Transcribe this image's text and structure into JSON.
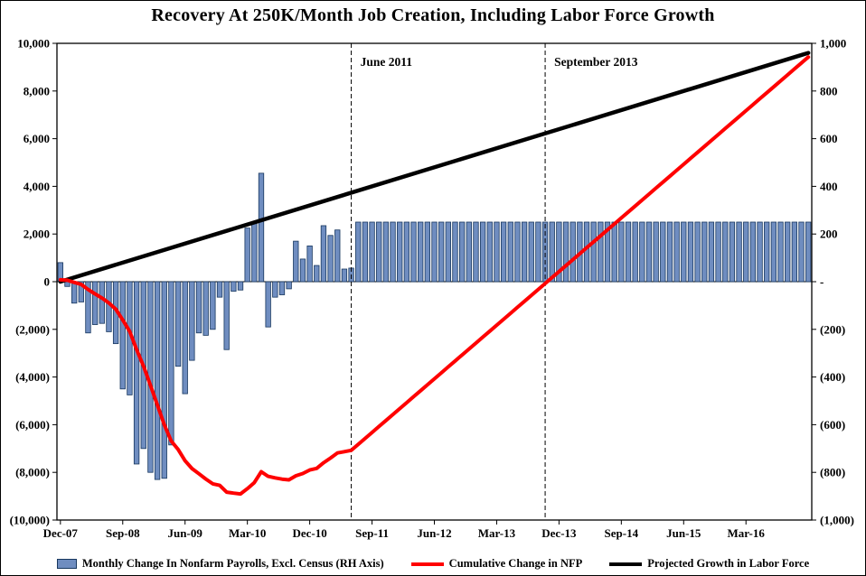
{
  "chart_data": {
    "type": "combo",
    "title": "Recovery At 250K/Month Job Creation, Including Labor Force Growth",
    "grid": "none",
    "legend_position": "bottom",
    "colors": {
      "bar_fill": "#6F8DC0",
      "bar_border": "#17375E",
      "nfp_line": "#FF0000",
      "labor_line": "#000000",
      "annotation_line": "#000000"
    },
    "x_axis": {
      "start_label": "Dec-07",
      "months_count": 109,
      "ticks": [
        {
          "label": "Dec-07",
          "month": 0
        },
        {
          "label": "Sep-08",
          "month": 9
        },
        {
          "label": "Jun-09",
          "month": 18
        },
        {
          "label": "Mar-10",
          "month": 27
        },
        {
          "label": "Dec-10",
          "month": 36
        },
        {
          "label": "Sep-11",
          "month": 45
        },
        {
          "label": "Jun-12",
          "month": 54
        },
        {
          "label": "Mar-13",
          "month": 63
        },
        {
          "label": "Dec-13",
          "month": 72
        },
        {
          "label": "Sep-14",
          "month": 81
        },
        {
          "label": "Jun-15",
          "month": 90
        },
        {
          "label": "Mar-16",
          "month": 99
        }
      ]
    },
    "y_axis_left": {
      "min": -10000,
      "max": 10000,
      "ticks": [
        {
          "label": "10,000",
          "value": 10000
        },
        {
          "label": "8,000",
          "value": 8000
        },
        {
          "label": "6,000",
          "value": 6000
        },
        {
          "label": "4,000",
          "value": 4000
        },
        {
          "label": "2,000",
          "value": 2000
        },
        {
          "label": "0",
          "value": 0
        },
        {
          "label": "(2,000)",
          "value": -2000
        },
        {
          "label": "(4,000)",
          "value": -4000
        },
        {
          "label": "(6,000)",
          "value": -6000
        },
        {
          "label": "(8,000)",
          "value": -8000
        },
        {
          "label": "(10,000)",
          "value": -10000
        }
      ]
    },
    "y_axis_right": {
      "min": -1000,
      "max": 1000,
      "ticks": [
        {
          "label": "1,000",
          "value": 1000
        },
        {
          "label": "800",
          "value": 800
        },
        {
          "label": "600",
          "value": 600
        },
        {
          "label": "400",
          "value": 400
        },
        {
          "label": "200",
          "value": 200
        },
        {
          "label": "-",
          "value": 0
        },
        {
          "label": "(200)",
          "value": -200
        },
        {
          "label": "(400)",
          "value": -400
        },
        {
          "label": "(600)",
          "value": -600
        },
        {
          "label": "(800)",
          "value": -800
        },
        {
          "label": "(1,000)",
          "value": -1000
        }
      ]
    },
    "annotations": [
      {
        "label": "June 2011",
        "month": 42
      },
      {
        "label": "September 2013",
        "month": 70
      }
    ],
    "series": [
      {
        "name": "Monthly Change In Nonfarm Payrolls, Excl. Census (RH Axis)",
        "type": "bar",
        "axis": "right",
        "values": [
          80,
          -20,
          -90,
          -85,
          -215,
          -180,
          -175,
          -210,
          -260,
          -450,
          -475,
          -765,
          -700,
          -800,
          -830,
          -825,
          -685,
          -355,
          -470,
          -330,
          -215,
          -225,
          -200,
          -65,
          -285,
          -40,
          -35,
          225,
          250,
          455,
          -190,
          -65,
          -55,
          -30,
          170,
          95,
          150,
          68,
          235,
          194,
          217,
          53,
          57,
          250,
          250,
          250,
          250,
          250,
          250,
          250,
          250,
          250,
          250,
          250,
          250,
          250,
          250,
          250,
          250,
          250,
          250,
          250,
          250,
          250,
          250,
          250,
          250,
          250,
          250,
          250,
          250,
          250,
          250,
          250,
          250,
          250,
          250,
          250,
          250,
          250,
          250,
          250,
          250,
          250,
          250,
          250,
          250,
          250,
          250,
          250,
          250,
          250,
          250,
          250,
          250,
          250,
          250,
          250,
          250,
          250,
          250,
          250,
          250,
          250,
          250,
          250,
          250,
          250,
          250
        ]
      },
      {
        "name": "Cumulative Change in NFP",
        "type": "line",
        "axis": "left",
        "color": "#FF0000",
        "values": [
          80,
          60,
          -30,
          -115,
          -330,
          -510,
          -685,
          -895,
          -1155,
          -1605,
          -2080,
          -2845,
          -3545,
          -4345,
          -5175,
          -6000,
          -6685,
          -7040,
          -7510,
          -7840,
          -8055,
          -8280,
          -8480,
          -8545,
          -8830,
          -8870,
          -8905,
          -8680,
          -8430,
          -7975,
          -8165,
          -8230,
          -8285,
          -8315,
          -8145,
          -8050,
          -7900,
          -7832,
          -7597,
          -7403,
          -7186,
          -7133,
          -7076,
          -6826,
          -6576,
          -6326,
          -6076,
          -5826,
          -5576,
          -5326,
          -5076,
          -4826,
          -4576,
          -4326,
          -4076,
          -3826,
          -3576,
          -3326,
          -3076,
          -2826,
          -2576,
          -2326,
          -2076,
          -1826,
          -1576,
          -1326,
          -1076,
          -826,
          -576,
          -326,
          -76,
          174,
          424,
          674,
          924,
          1174,
          1424,
          1674,
          1924,
          2174,
          2424,
          2674,
          2924,
          3174,
          3424,
          3674,
          3924,
          4174,
          4424,
          4674,
          4924,
          5174,
          5424,
          5674,
          5924,
          6174,
          6424,
          6674,
          6924,
          7174,
          7424,
          7674,
          7924,
          8174,
          8424,
          8674,
          8924,
          9174,
          9424
        ]
      },
      {
        "name": "Projected Growth in Labor Force",
        "type": "line",
        "axis": "left",
        "color": "#000000",
        "points": [
          {
            "month": 0,
            "value": 0
          },
          {
            "month": 108,
            "value": 9600
          }
        ]
      }
    ]
  }
}
